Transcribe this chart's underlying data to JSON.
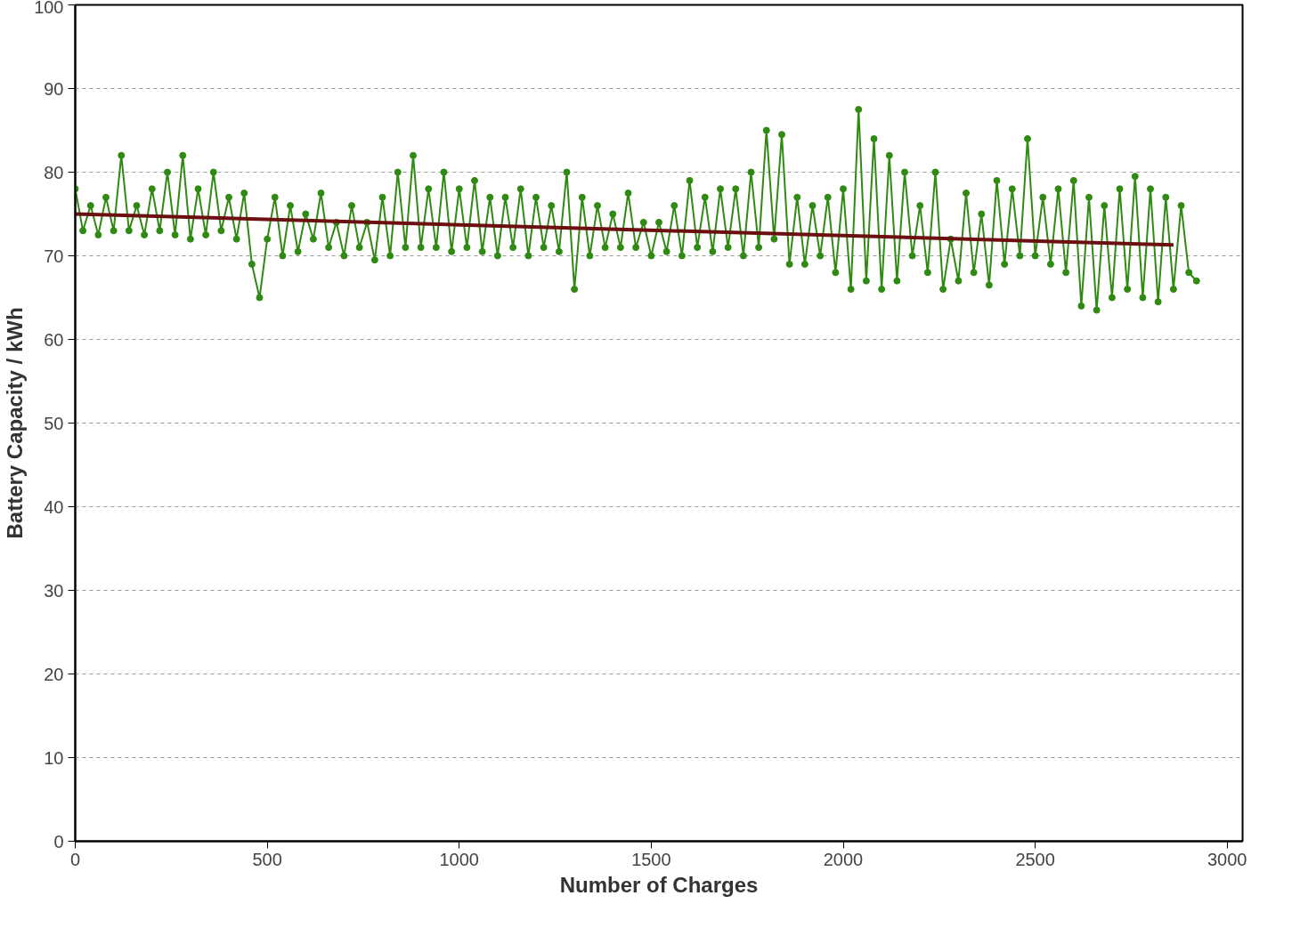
{
  "chart_data": {
    "type": "line",
    "xlabel": "Number of Charges",
    "ylabel": "Battery Capacity / kWh",
    "x": [
      0,
      20,
      40,
      60,
      80,
      100,
      120,
      140,
      160,
      180,
      200,
      220,
      240,
      260,
      280,
      300,
      320,
      340,
      360,
      380,
      400,
      420,
      440,
      460,
      480,
      500,
      520,
      540,
      560,
      580,
      600,
      620,
      640,
      660,
      680,
      700,
      720,
      740,
      760,
      780,
      800,
      820,
      840,
      860,
      880,
      900,
      920,
      940,
      960,
      980,
      1000,
      1020,
      1040,
      1060,
      1080,
      1100,
      1120,
      1140,
      1160,
      1180,
      1200,
      1220,
      1240,
      1260,
      1280,
      1300,
      1320,
      1340,
      1360,
      1380,
      1400,
      1420,
      1440,
      1460,
      1480,
      1500,
      1520,
      1540,
      1560,
      1580,
      1600,
      1620,
      1640,
      1660,
      1680,
      1700,
      1720,
      1740,
      1760,
      1780,
      1800,
      1820,
      1840,
      1860,
      1880,
      1900,
      1920,
      1940,
      1960,
      1980,
      2000,
      2020,
      2040,
      2060,
      2080,
      2100,
      2120,
      2140,
      2160,
      2180,
      2200,
      2220,
      2240,
      2260,
      2280,
      2300,
      2320,
      2340,
      2360,
      2380,
      2400,
      2420,
      2440,
      2460,
      2480,
      2500,
      2520,
      2540,
      2560,
      2580,
      2600,
      2620,
      2640,
      2660,
      2680,
      2700,
      2720,
      2740,
      2760,
      2780,
      2800,
      2820,
      2840,
      2860,
      2880,
      2900,
      2920
    ],
    "series": [
      {
        "color": "#2f8a12",
        "marker": "circle",
        "values": [
          78,
          73,
          76,
          72.5,
          77,
          73,
          82,
          73,
          76,
          72.5,
          78,
          73,
          80,
          72.5,
          82,
          72,
          78,
          72.5,
          80,
          73,
          77,
          72,
          77.5,
          69,
          65,
          72,
          77,
          70,
          76,
          70.5,
          75,
          72,
          77.5,
          71,
          74,
          70,
          76,
          71,
          74,
          69.5,
          77,
          70,
          80,
          71,
          82,
          71,
          78,
          71,
          80,
          70.5,
          78,
          71,
          79,
          70.5,
          77,
          70,
          77,
          71,
          78,
          70,
          77,
          71,
          76,
          70.5,
          80,
          66,
          77,
          70,
          76,
          71,
          75,
          71,
          77.5,
          71,
          74,
          70,
          74,
          70.5,
          76,
          70,
          79,
          71,
          77,
          70.5,
          78,
          71,
          78,
          70,
          80,
          71,
          85,
          72,
          84.5,
          69,
          77,
          69,
          76,
          70,
          77,
          68,
          78,
          66,
          87.5,
          67,
          84,
          66,
          82,
          67,
          80,
          70,
          76,
          68,
          80,
          66,
          72,
          67,
          77.5,
          68,
          75,
          66.5,
          79,
          69,
          78,
          70,
          84,
          70,
          77,
          69,
          78,
          68,
          79,
          64,
          77,
          63.5,
          76,
          65,
          78,
          66,
          79.5,
          65,
          78,
          64.5,
          77,
          66,
          76,
          68,
          67
        ]
      },
      {
        "type": "line",
        "color": "#6b0f0f",
        "marker": "none",
        "x": [
          0,
          2860
        ],
        "values": [
          75,
          71.3
        ]
      }
    ],
    "xlim": [
      0,
      3040
    ],
    "ylim": [
      0,
      100
    ],
    "xticks": [
      0,
      500,
      1000,
      1500,
      2000,
      2500,
      3000
    ],
    "yticks": [
      0,
      10,
      20,
      30,
      40,
      50,
      60,
      70,
      80,
      90,
      100
    ],
    "grid": "y"
  }
}
